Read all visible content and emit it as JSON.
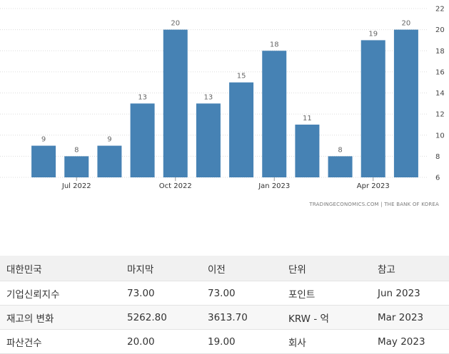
{
  "chart_data": {
    "type": "bar",
    "categories": [
      "Jun 2022",
      "Jul 2022",
      "Aug 2022",
      "Sep 2022",
      "Oct 2022",
      "Nov 2022",
      "Dec 2022",
      "Jan 2023",
      "Feb 2023",
      "Mar 2023",
      "Apr 2023",
      "May 2023"
    ],
    "values": [
      9,
      8,
      9,
      13,
      20,
      13,
      15,
      18,
      11,
      8,
      19,
      20
    ],
    "x_tick_labels": [
      "Jul 2022",
      "Oct 2022",
      "Jan 2023",
      "Apr 2023"
    ],
    "x_tick_categories": [
      "Jul 2022",
      "Oct 2022",
      "Jan 2023",
      "Apr 2023"
    ],
    "y_ticks": [
      6,
      8,
      10,
      12,
      14,
      16,
      18,
      20,
      22
    ],
    "ylim": [
      6,
      22
    ],
    "y_axis_side": "right",
    "grid": true,
    "bar_color": "#4682b4",
    "data_labels": true,
    "source": "TRADINGECONOMICS.COM  |  THE BANK OF KOREA"
  },
  "table": {
    "headers": [
      "대한민국",
      "마지막",
      "이전",
      "단위",
      "참고"
    ],
    "rows": [
      [
        "기업신뢰지수",
        "73.00",
        "73.00",
        "포인트",
        "Jun 2023"
      ],
      [
        "재고의 변화",
        "5262.80",
        "3613.70",
        "KRW - 억",
        "Mar 2023"
      ],
      [
        "파산건수",
        "20.00",
        "19.00",
        "회사",
        "May 2023"
      ]
    ]
  }
}
